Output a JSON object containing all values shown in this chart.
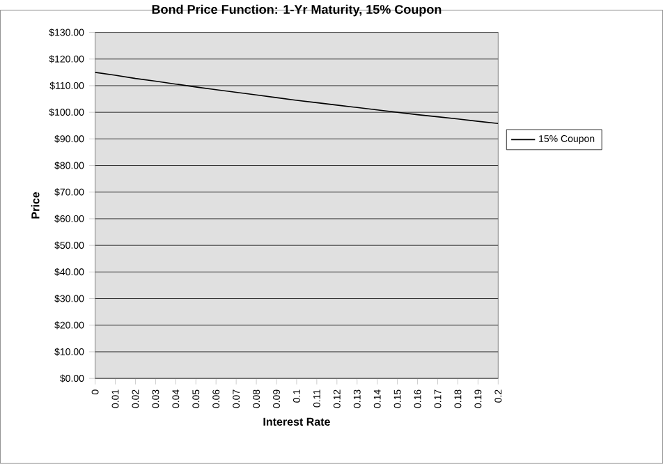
{
  "chart_data": {
    "type": "line",
    "title": "Bond Price Function: 1-Yr Maturity, 15% Coupon",
    "xlabel": "Interest Rate",
    "ylabel": "Price",
    "categories": [
      "0",
      "0.01",
      "0.02",
      "0.03",
      "0.04",
      "0.05",
      "0.06",
      "0.07",
      "0.08",
      "0.09",
      "0.1",
      "0.11",
      "0.12",
      "0.13",
      "0.14",
      "0.15",
      "0.16",
      "0.17",
      "0.18",
      "0.19",
      "0.2"
    ],
    "series": [
      {
        "name": "15% Coupon",
        "color": "#000000",
        "values": [
          115.0,
          113.9,
          112.7,
          111.7,
          110.6,
          109.5,
          108.5,
          107.5,
          106.5,
          105.5,
          104.5,
          103.6,
          102.7,
          101.8,
          100.9,
          100.0,
          99.1,
          98.3,
          97.5,
          96.6,
          95.8
        ]
      }
    ],
    "ylim": [
      0,
      130
    ],
    "yticks": [
      {
        "value": 0,
        "label": "$0.00"
      },
      {
        "value": 10,
        "label": "$10.00"
      },
      {
        "value": 20,
        "label": "$20.00"
      },
      {
        "value": 30,
        "label": "$30.00"
      },
      {
        "value": 40,
        "label": "$40.00"
      },
      {
        "value": 50,
        "label": "$50.00"
      },
      {
        "value": 60,
        "label": "$60.00"
      },
      {
        "value": 70,
        "label": "$70.00"
      },
      {
        "value": 80,
        "label": "$80.00"
      },
      {
        "value": 90,
        "label": "$90.00"
      },
      {
        "value": 100,
        "label": "$100.00"
      },
      {
        "value": 110,
        "label": "$110.00"
      },
      {
        "value": 120,
        "label": "$120.00"
      },
      {
        "value": 130,
        "label": "$130.00"
      }
    ],
    "grid": "y",
    "legend": "right",
    "marker": "none",
    "line_style": "solid"
  }
}
